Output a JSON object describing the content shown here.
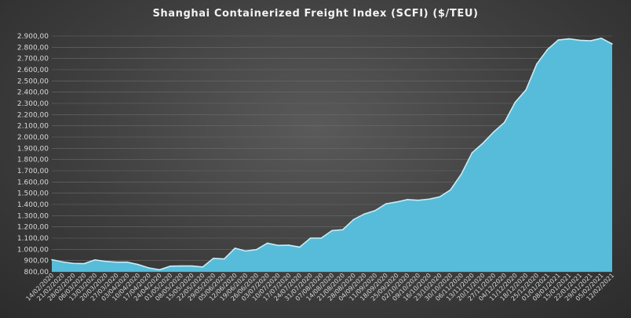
{
  "chart_data": {
    "type": "area",
    "title": "Shanghai Containerized Freight Index  (SCFI) ($/TEU)",
    "xlabel": "",
    "ylabel": "",
    "ylim": [
      800,
      2900
    ],
    "y_ticks": [
      "2.900,00",
      "2.800,00",
      "2.700,00",
      "2.600,00",
      "2.500,00",
      "2.400,00",
      "2.300,00",
      "2.200,00",
      "2.100,00",
      "2.000,00",
      "1.900,00",
      "1.800,00",
      "1.700,00",
      "1.600,00",
      "1.500,00",
      "1.400,00",
      "1.300,00",
      "1.200,00",
      "1.100,00",
      "1.000,00",
      "900,00",
      "800,00"
    ],
    "y_tick_values": [
      2900,
      2800,
      2700,
      2600,
      2500,
      2400,
      2300,
      2200,
      2100,
      2000,
      1900,
      1800,
      1700,
      1600,
      1500,
      1400,
      1300,
      1200,
      1100,
      1000,
      900,
      800
    ],
    "x_labels": [
      "14/02/2020",
      "21/02/2020",
      "28/02/2020",
      "06/03/2020",
      "13/03/2020",
      "20/03/2020",
      "27/03/2020",
      "03/04/2020",
      "10/04/2020",
      "17/04/2020",
      "24/04/2020",
      "01/05/2020",
      "08/05/2020",
      "15/05/2020",
      "22/05/2020",
      "29/05/2020",
      "05/06/2020",
      "12/06/2020",
      "19/06/2020",
      "26/06/2020",
      "03/07/2020",
      "10/07/2020",
      "17/07/2020",
      "24/07/2020",
      "31/07/2020",
      "07/08/2020",
      "14/08/2020",
      "21/08/2020",
      "28/08/2020",
      "04/09/2020",
      "11/09/2020",
      "18/09/2020",
      "25/09/2020",
      "02/10/2020",
      "09/10/2020",
      "16/10/2020",
      "23/10/2020",
      "30/10/2020",
      "06/11/2020",
      "13/11/2020",
      "20/11/2020",
      "27/11/2020",
      "04/12/2020",
      "11/12/2020",
      "18/12/2020",
      "25/12/2020",
      "01/01/2021",
      "08/01/2021",
      "15/01/2021",
      "22/01/2021",
      "29/01/2021",
      "05/02/2021",
      "12/02/2021"
    ],
    "series": [
      {
        "name": "",
        "values": [
          908,
          888,
          875,
          873,
          906,
          893,
          886,
          886,
          865,
          835,
          818,
          850,
          852,
          852,
          843,
          920,
          915,
          1010,
          985,
          998,
          1055,
          1035,
          1037,
          1020,
          1100,
          1100,
          1167,
          1175,
          1265,
          1315,
          1345,
          1405,
          1422,
          1443,
          1437,
          1447,
          1468,
          1530,
          1670,
          1860,
          1945,
          2045,
          2130,
          2310,
          2420,
          2650,
          2780,
          2865,
          2875,
          2862,
          2858,
          2880,
          2830
        ]
      }
    ],
    "colors": {
      "area_fill": "#56bcd9",
      "area_stroke": "#c6eef8",
      "grid": "#6b6b6b",
      "text": "#d9d9d9"
    }
  }
}
